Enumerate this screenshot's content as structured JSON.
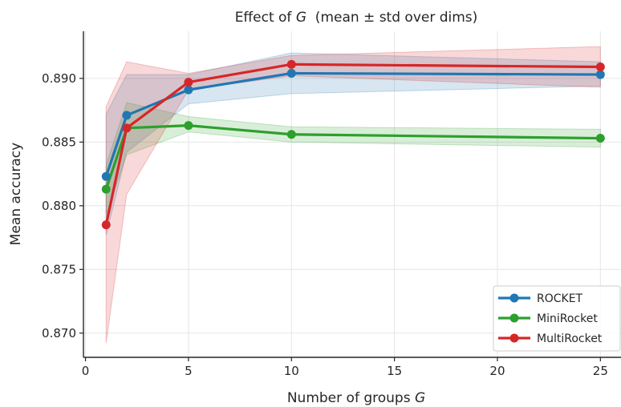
{
  "chart_data": {
    "type": "line",
    "title_prefix": "Effect of ",
    "title_var": "G",
    "title_suffix": "  (mean ± std over dims)",
    "xlabel_prefix": "Number of groups ",
    "xlabel_var": "G",
    "ylabel": "Mean accuracy",
    "x": [
      1,
      2,
      5,
      10,
      25
    ],
    "xlim": [
      -0.1,
      26.0
    ],
    "ylim": [
      0.8681,
      0.8937
    ],
    "xticks": [
      0,
      5,
      10,
      15,
      20,
      25
    ],
    "yticks": [
      0.87,
      0.875,
      0.88,
      0.885,
      0.89
    ],
    "grid": true,
    "legend_position": "bottom-right",
    "series": [
      {
        "name": "ROCKET",
        "color": "#1f77b4",
        "values": [
          0.8823,
          0.8871,
          0.8891,
          0.8904,
          0.8903
        ],
        "std_lower": [
          0.8777,
          0.8842,
          0.888,
          0.8888,
          0.8894
        ],
        "std_upper": [
          0.8872,
          0.8903,
          0.8903,
          0.892,
          0.8913
        ]
      },
      {
        "name": "MiniRocket",
        "color": "#2ca02c",
        "values": [
          0.8813,
          0.8861,
          0.8863,
          0.8856,
          0.8853
        ],
        "std_lower": [
          0.8793,
          0.884,
          0.8858,
          0.885,
          0.8846
        ],
        "std_upper": [
          0.8832,
          0.8881,
          0.887,
          0.8862,
          0.886
        ]
      },
      {
        "name": "MultiRocket",
        "color": "#d62728",
        "values": [
          0.8785,
          0.8861,
          0.8897,
          0.8911,
          0.8909
        ],
        "std_lower": [
          0.8692,
          0.8809,
          0.8891,
          0.8902,
          0.8893
        ],
        "std_upper": [
          0.8878,
          0.8913,
          0.8904,
          0.8918,
          0.8925
        ]
      }
    ]
  }
}
